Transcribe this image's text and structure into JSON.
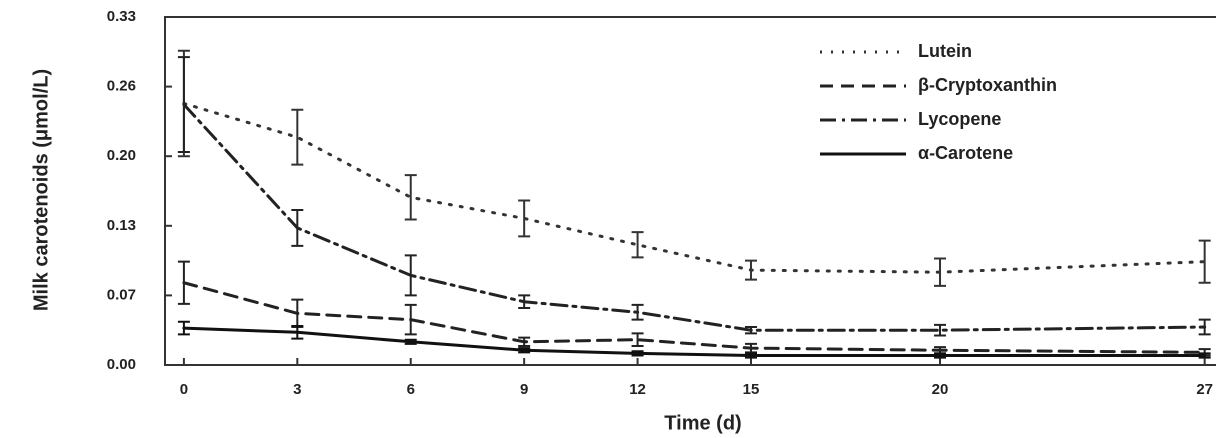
{
  "chart_data": {
    "type": "line",
    "x_label": "Time (d)",
    "y_label": "Milk carotenoids (μmol/L)",
    "x": [
      0,
      3,
      6,
      9,
      12,
      15,
      20,
      27
    ],
    "xlim": [
      -0.5,
      27.3
    ],
    "xticks": [
      0,
      3,
      6,
      9,
      12,
      15,
      20,
      27
    ],
    "ylim": [
      0,
      0.33
    ],
    "yticks": [
      {
        "value": 0,
        "label": "0.00"
      },
      {
        "value": 0.066,
        "label": "0.07"
      },
      {
        "value": 0.132,
        "label": "0.13"
      },
      {
        "value": 0.198,
        "label": "0.20"
      },
      {
        "value": 0.264,
        "label": "0.26"
      },
      0.33
    ],
    "legend": "upper right",
    "series": [
      {
        "name": "Lutein",
        "color": "#333333",
        "dash": "dotted",
        "values": [
          0.248,
          0.216,
          0.159,
          0.139,
          0.114,
          0.09,
          0.088,
          0.098
        ],
        "errors": [
          0.05,
          0.026,
          0.021,
          0.017,
          0.012,
          0.009,
          0.013,
          0.02
        ]
      },
      {
        "name": "β-Cryptoxanthin",
        "color": "#222222",
        "dash": "dashed",
        "values": [
          0.078,
          0.049,
          0.043,
          0.022,
          0.024,
          0.016,
          0.014,
          0.012
        ],
        "errors": [
          0.02,
          0.013,
          0.014,
          0.004,
          0.006,
          0.004,
          0.003,
          0.003
        ]
      },
      {
        "name": "Lycopene",
        "color": "#222222",
        "dash": "dashdot",
        "values": [
          0.247,
          0.13,
          0.085,
          0.06,
          0.05,
          0.033,
          0.033,
          0.036
        ],
        "errors": [
          0.045,
          0.017,
          0.019,
          0.006,
          0.007,
          0.003,
          0.005,
          0.007
        ]
      },
      {
        "name": "α-Carotene",
        "color": "#111111",
        "dash": "solid",
        "values": [
          0.035,
          0.031,
          0.022,
          0.014,
          0.011,
          0.009,
          0.009,
          0.009
        ],
        "errors": [
          0.006,
          0.006,
          0.002,
          0.002,
          0.002,
          0.002,
          0.002,
          0.002
        ]
      }
    ]
  }
}
